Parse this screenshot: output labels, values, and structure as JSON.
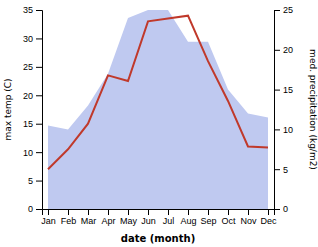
{
  "chart_data": {
    "type": "line",
    "xlabel": "date (month)",
    "ylabel": "max temp (C)",
    "y2label": "med. precipitation (kg/m2)",
    "categories": [
      "Jan",
      "Feb",
      "Mar",
      "Apr",
      "May",
      "Jun",
      "Jul",
      "Aug",
      "Sep",
      "Oct",
      "Nov",
      "Dec"
    ],
    "series": [
      {
        "type": "area",
        "axis": "y2",
        "color": "#bfc9f0",
        "values": [
          10.5,
          10,
          13,
          17,
          24,
          25,
          25,
          21,
          21,
          15,
          12,
          11.5
        ]
      },
      {
        "type": "line",
        "color": "#c0392b",
        "values": [
          7,
          10.5,
          15,
          23.5,
          22.5,
          33,
          33.5,
          34,
          26,
          19,
          11,
          10.8
        ]
      }
    ],
    "ylim": [
      0,
      35
    ],
    "yticks": [
      0,
      5,
      10,
      15,
      20,
      25,
      30,
      35
    ],
    "y2lim": [
      0,
      25
    ],
    "y2ticks": [
      0,
      5,
      10,
      15,
      20,
      25
    ]
  }
}
